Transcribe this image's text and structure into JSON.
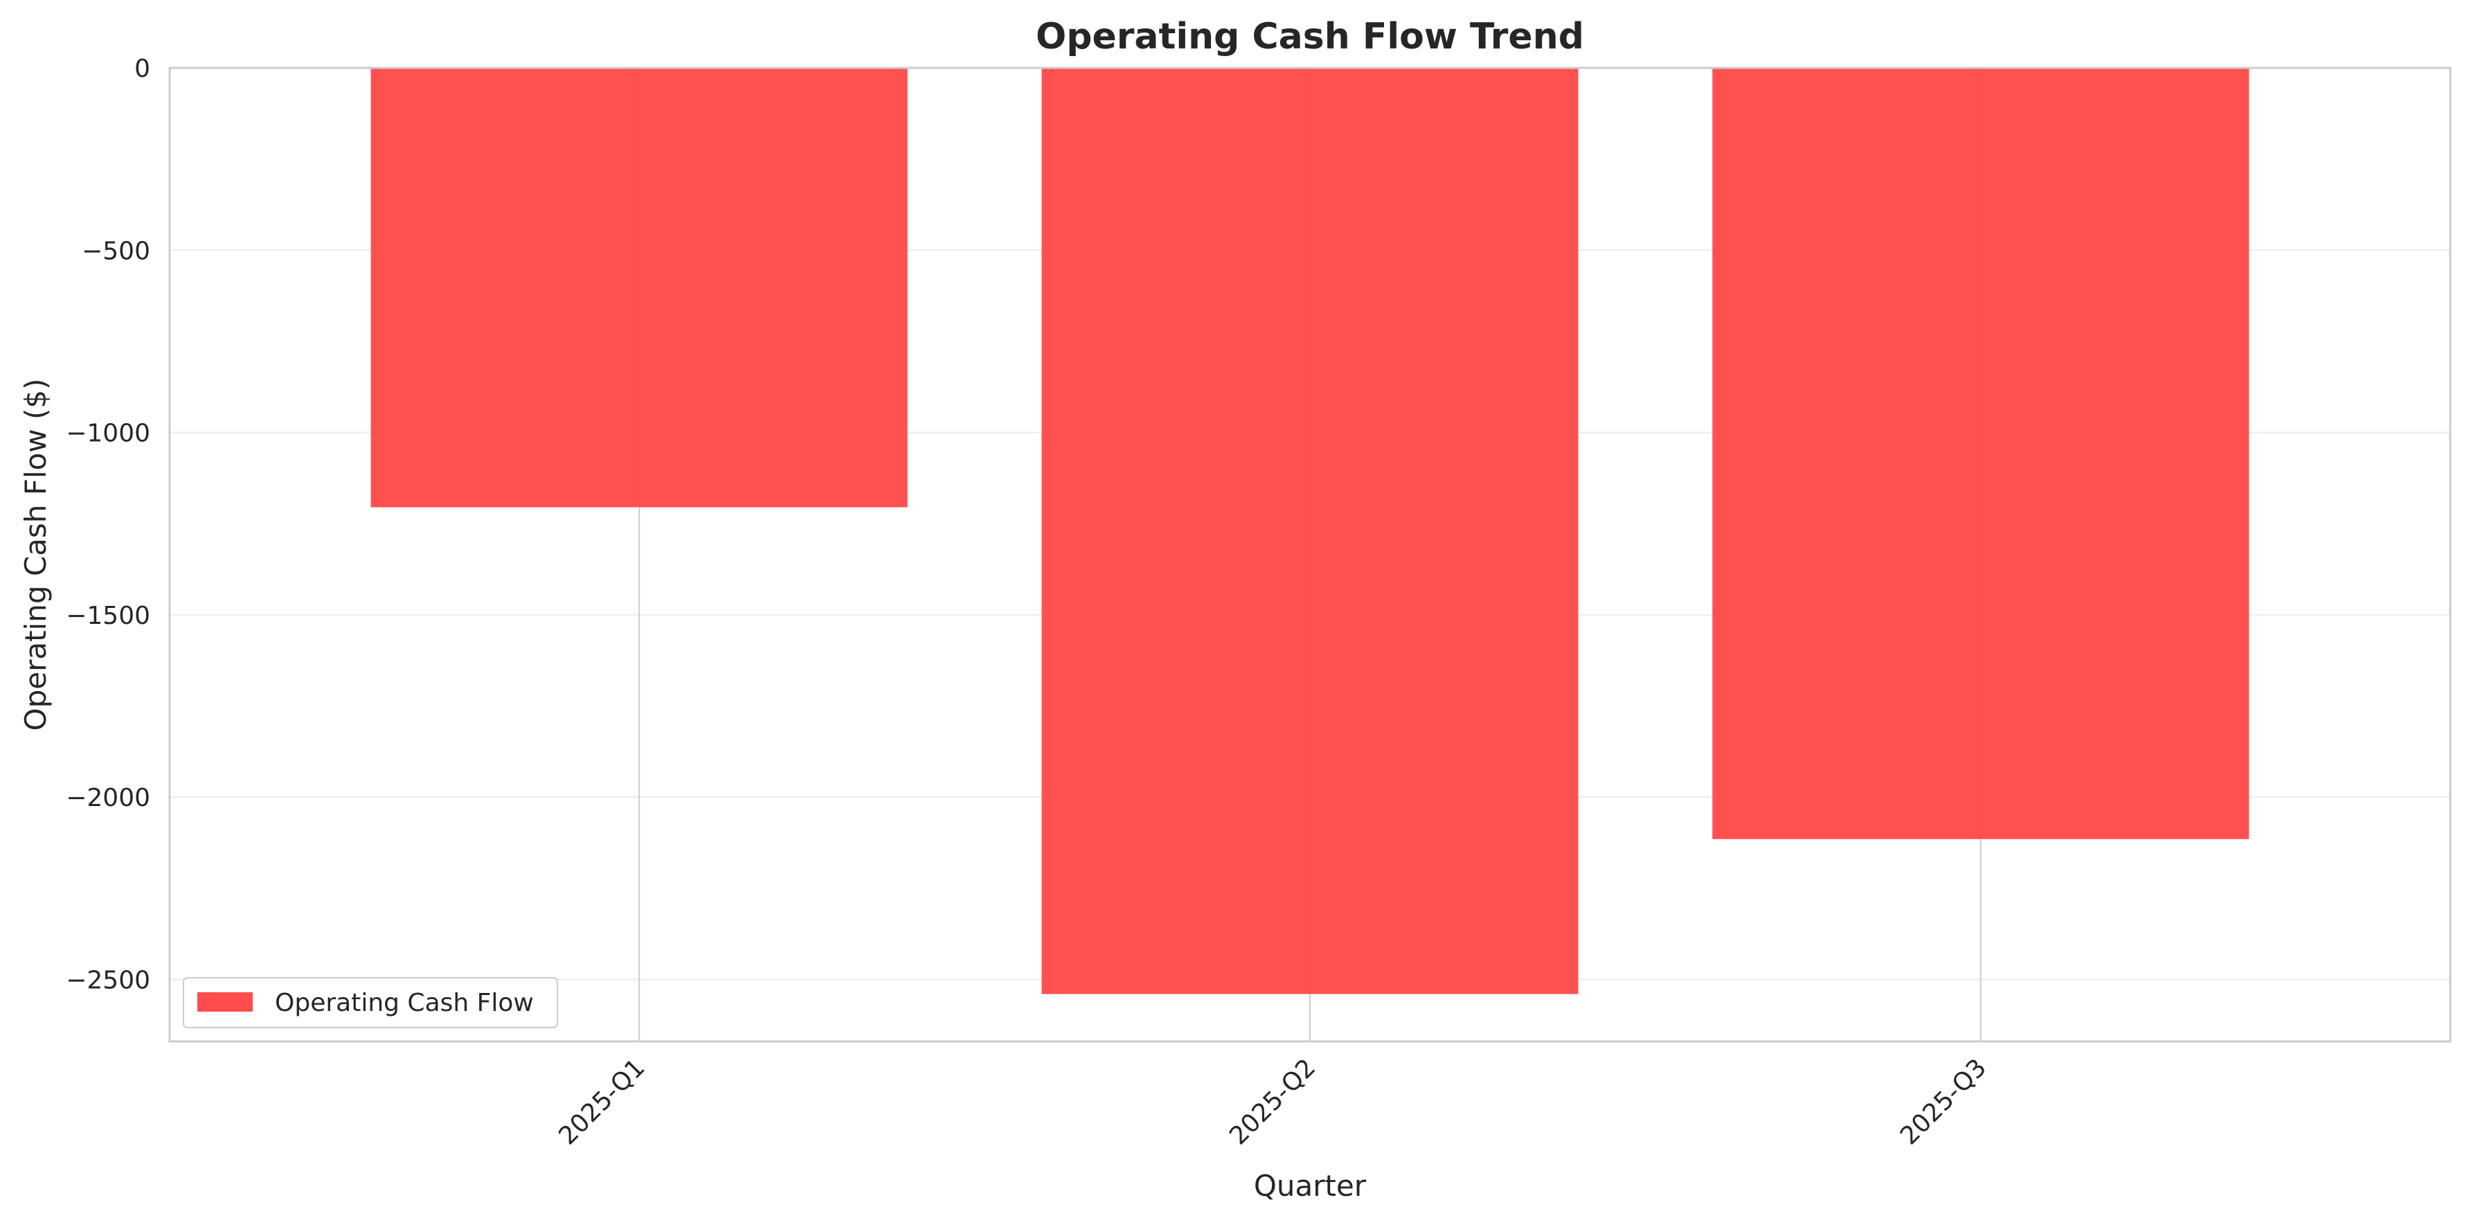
{
  "chart_data": {
    "type": "bar",
    "title": "Operating Cash Flow Trend",
    "xlabel": "Quarter",
    "ylabel": "Operating Cash Flow ($)",
    "categories": [
      "2025-Q1",
      "2025-Q2",
      "2025-Q3"
    ],
    "series": [
      {
        "name": "Operating Cash Flow",
        "values": [
          -1205,
          -2540,
          -2115
        ],
        "color": "#ff4c4c"
      }
    ],
    "ylim": [
      -2670,
      0
    ],
    "yticks": [
      0,
      -500,
      -1000,
      -1500,
      -2000,
      -2500
    ],
    "ytick_labels": [
      "0",
      "−500",
      "−1000",
      "−1500",
      "−2000",
      "−2500"
    ],
    "grid": true,
    "legend_position": "lower-left"
  }
}
